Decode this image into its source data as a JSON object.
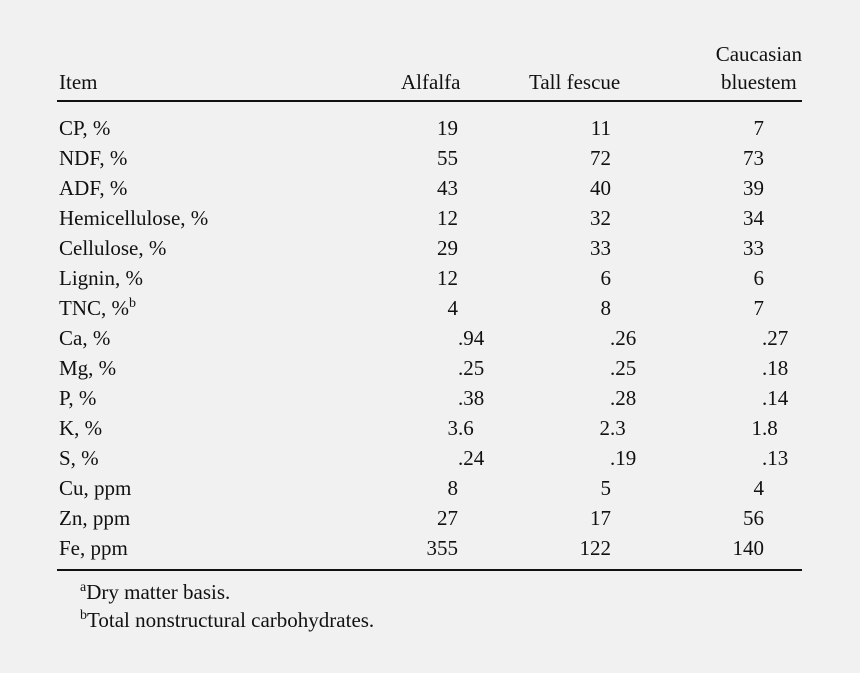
{
  "table": {
    "headers": {
      "item": "Item",
      "alfalfa": "Alfalfa",
      "tall_fescue": "Tall fescue",
      "caucasian_line1": "Caucasian",
      "caucasian_line2": "bluestem"
    },
    "rows": [
      {
        "item": "CP, %",
        "item_sup": "",
        "alfalfa": "19",
        "tall_fescue": "11",
        "caucasian_bluestem": "7"
      },
      {
        "item": "NDF, %",
        "item_sup": "",
        "alfalfa": "55",
        "tall_fescue": "72",
        "caucasian_bluestem": "73"
      },
      {
        "item": "ADF, %",
        "item_sup": "",
        "alfalfa": "43",
        "tall_fescue": "40",
        "caucasian_bluestem": "39"
      },
      {
        "item": "Hemicellulose, %",
        "item_sup": "",
        "alfalfa": "12",
        "tall_fescue": "32",
        "caucasian_bluestem": "34"
      },
      {
        "item": "Cellulose, %",
        "item_sup": "",
        "alfalfa": "29",
        "tall_fescue": "33",
        "caucasian_bluestem": "33"
      },
      {
        "item": "Lignin, %",
        "item_sup": "",
        "alfalfa": "12",
        "tall_fescue": "6",
        "caucasian_bluestem": "6"
      },
      {
        "item": "TNC, %",
        "item_sup": "b",
        "alfalfa": "4",
        "tall_fescue": "8",
        "caucasian_bluestem": "7"
      },
      {
        "item": "Ca, %",
        "item_sup": "",
        "alfalfa": ".94",
        "tall_fescue": ".26",
        "caucasian_bluestem": ".27"
      },
      {
        "item": "Mg, %",
        "item_sup": "",
        "alfalfa": ".25",
        "tall_fescue": ".25",
        "caucasian_bluestem": ".18"
      },
      {
        "item": "P, %",
        "item_sup": "",
        "alfalfa": ".38",
        "tall_fescue": ".28",
        "caucasian_bluestem": ".14"
      },
      {
        "item": "K, %",
        "item_sup": "",
        "alfalfa": "3.6",
        "tall_fescue": "2.3",
        "caucasian_bluestem": "1.8"
      },
      {
        "item": "S, %",
        "item_sup": "",
        "alfalfa": ".24",
        "tall_fescue": ".19",
        "caucasian_bluestem": ".13"
      },
      {
        "item": "Cu, ppm",
        "item_sup": "",
        "alfalfa": "8",
        "tall_fescue": "5",
        "caucasian_bluestem": "4"
      },
      {
        "item": "Zn, ppm",
        "item_sup": "",
        "alfalfa": "27",
        "tall_fescue": "17",
        "caucasian_bluestem": "56"
      },
      {
        "item": "Fe, ppm",
        "item_sup": "",
        "alfalfa": "355",
        "tall_fescue": "122",
        "caucasian_bluestem": "140"
      }
    ]
  },
  "footnotes": [
    {
      "mark": "a",
      "text": "Dry matter basis."
    },
    {
      "mark": "b",
      "text": "Total nonstructural carbohydrates."
    }
  ]
}
